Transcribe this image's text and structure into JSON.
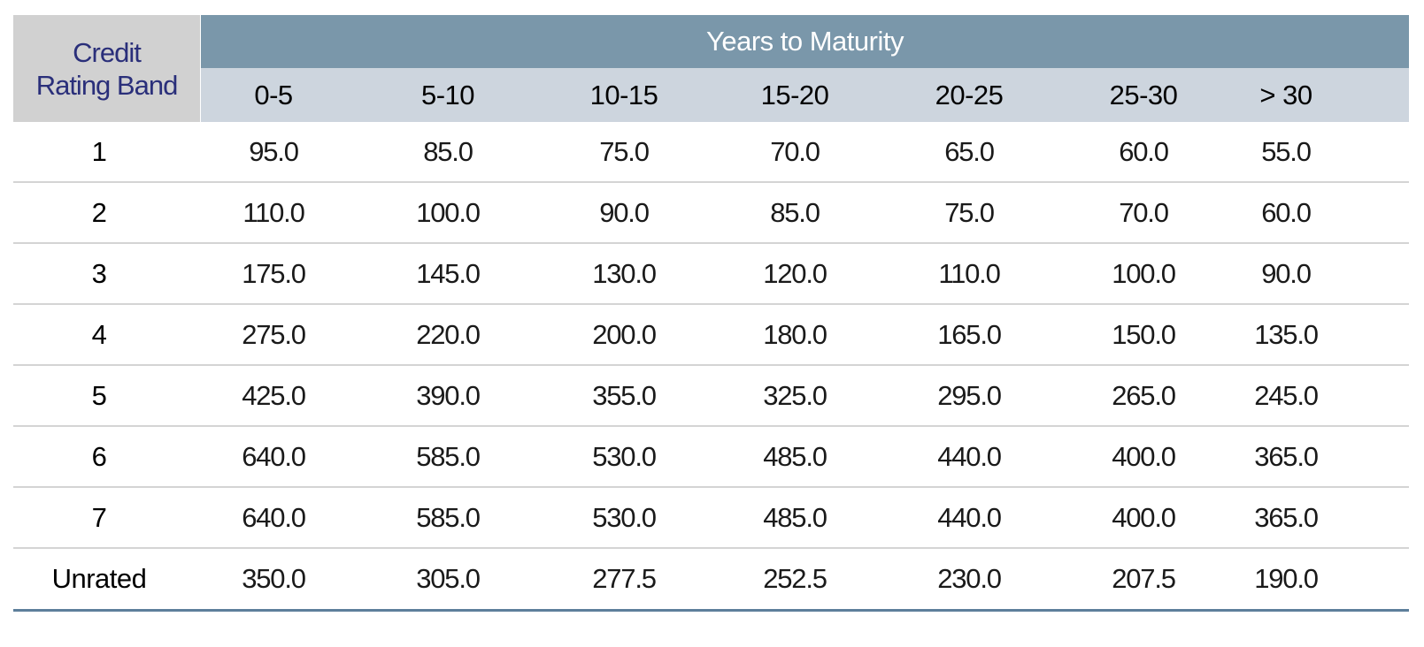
{
  "table": {
    "corner_header": [
      "Credit",
      "Rating Band"
    ],
    "group_header": "Years to Maturity",
    "columns": [
      "0-5",
      "5-10",
      "10-15",
      "15-20",
      "20-25",
      "25-30",
      "> 30"
    ],
    "rows": [
      {
        "band": "1",
        "values": [
          "95.0",
          "85.0",
          "75.0",
          "70.0",
          "65.0",
          "60.0",
          "55.0"
        ]
      },
      {
        "band": "2",
        "values": [
          "110.0",
          "100.0",
          "90.0",
          "85.0",
          "75.0",
          "70.0",
          "60.0"
        ]
      },
      {
        "band": "3",
        "values": [
          "175.0",
          "145.0",
          "130.0",
          "120.0",
          "110.0",
          "100.0",
          "90.0"
        ]
      },
      {
        "band": "4",
        "values": [
          "275.0",
          "220.0",
          "200.0",
          "180.0",
          "165.0",
          "150.0",
          "135.0"
        ]
      },
      {
        "band": "5",
        "values": [
          "425.0",
          "390.0",
          "355.0",
          "325.0",
          "295.0",
          "265.0",
          "245.0"
        ]
      },
      {
        "band": "6",
        "values": [
          "640.0",
          "585.0",
          "530.0",
          "485.0",
          "440.0",
          "400.0",
          "365.0"
        ]
      },
      {
        "band": "7",
        "values": [
          "640.0",
          "585.0",
          "530.0",
          "485.0",
          "440.0",
          "400.0",
          "365.0"
        ]
      },
      {
        "band": "Unrated",
        "values": [
          "350.0",
          "305.0",
          "277.5",
          "252.5",
          "230.0",
          "207.5",
          "190.0"
        ]
      }
    ]
  },
  "colors": {
    "group_header_bg": "#7a97aa",
    "subheader_bg": "#cdd5de",
    "corner_bg": "#d1d1d1",
    "corner_text": "#2a2f7a",
    "row_divider": "#d4d4d4",
    "bottom_rule": "#5d7f9b"
  }
}
